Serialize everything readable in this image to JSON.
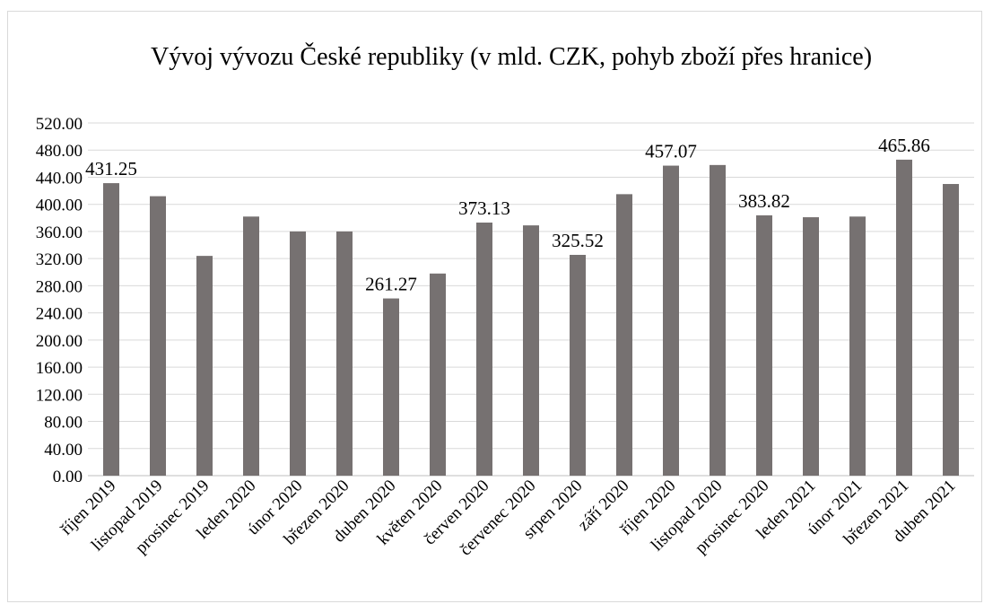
{
  "chart_data": {
    "type": "bar",
    "title": "Vývoj vývozu České republiky (v mld. CZK, pohyb zboží přes hranice)",
    "xlabel": "",
    "ylabel": "",
    "ylim": [
      0,
      520
    ],
    "ytick_step": 40,
    "ytick_labels": [
      "0.00",
      "40.00",
      "80.00",
      "120.00",
      "160.00",
      "200.00",
      "240.00",
      "280.00",
      "320.00",
      "360.00",
      "400.00",
      "440.00",
      "480.00",
      "520.00"
    ],
    "grid": true,
    "legend": "none",
    "bar_color": "#767171",
    "categories": [
      "říjen 2019",
      "listopad 2019",
      "prosinec 2019",
      "leden 2020",
      "únor 2020",
      "březen 2020",
      "duben 2020",
      "květen 2020",
      "červen 2020",
      "červenec 2020",
      "srpen 2020",
      "září 2020",
      "říjen 2020",
      "listopad 2020",
      "prosinec 2020",
      "leden 2021",
      "únor 2021",
      "březen 2021",
      "duben 2021"
    ],
    "values": [
      431.25,
      412,
      324,
      382,
      360,
      360,
      261.27,
      298,
      373.13,
      369,
      325.52,
      415,
      457.07,
      458,
      383.82,
      381,
      382,
      465.86,
      430
    ],
    "data_labels": {
      "0": "431.25",
      "6": "261.27",
      "8": "373.13",
      "10": "325.52",
      "12": "457.07",
      "14": "383.82",
      "17": "465.86"
    }
  }
}
